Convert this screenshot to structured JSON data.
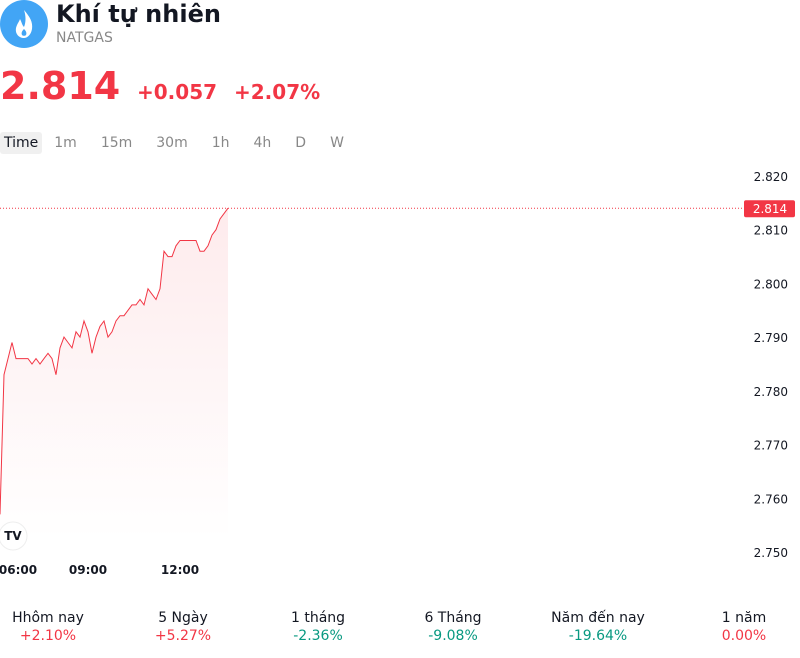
{
  "header": {
    "title": "Khí tự nhiên",
    "symbol": "NATGAS"
  },
  "quote": {
    "price": "2.814",
    "change": "+0.057",
    "change_percent": "+2.07%",
    "color": "#f23645"
  },
  "timeframes": {
    "items": [
      "Time",
      "1m",
      "15m",
      "30m",
      "1h",
      "4h",
      "D",
      "W"
    ],
    "active": 0
  },
  "chart_data": {
    "type": "line",
    "series": [
      {
        "color": "#f23645",
        "values": [
          2.757,
          2.783,
          2.786,
          2.789,
          2.786,
          2.786,
          2.786,
          2.786,
          2.785,
          2.786,
          2.785,
          2.786,
          2.787,
          2.786,
          2.783,
          2.788,
          2.79,
          2.789,
          2.788,
          2.791,
          2.79,
          2.793,
          2.791,
          2.787,
          2.79,
          2.792,
          2.793,
          2.79,
          2.791,
          2.793,
          2.794,
          2.794,
          2.795,
          2.796,
          2.796,
          2.797,
          2.796,
          2.799,
          2.798,
          2.797,
          2.799,
          2.806,
          2.805,
          2.805,
          2.807,
          2.808,
          2.808,
          2.808,
          2.808,
          2.808,
          2.806,
          2.806,
          2.807,
          2.809,
          2.81,
          2.812,
          2.813,
          2.814
        ]
      }
    ],
    "xlim": [
      0,
      185
    ],
    "xticks": [
      {
        "value": 4.5,
        "label": "06:00"
      },
      {
        "value": 22,
        "label": "09:00"
      },
      {
        "value": 45,
        "label": "12:00"
      }
    ],
    "ylim": [
      2.75,
      2.82
    ],
    "yticks": [
      {
        "value": 2.75,
        "label": "2.750"
      },
      {
        "value": 2.76,
        "label": "2.760"
      },
      {
        "value": 2.77,
        "label": "2.770"
      },
      {
        "value": 2.78,
        "label": "2.780"
      },
      {
        "value": 2.79,
        "label": "2.790"
      },
      {
        "value": 2.8,
        "label": "2.800"
      },
      {
        "value": 2.81,
        "label": "2.810"
      },
      {
        "value": 2.82,
        "label": "2.820"
      }
    ],
    "last_price": 2.814
  },
  "periods": [
    {
      "label": "Hhôm nay",
      "change": "+2.10%",
      "color": "#f23645"
    },
    {
      "label": "5 Ngày",
      "change": "+5.27%",
      "color": "#f23645"
    },
    {
      "label": "1 tháng",
      "change": "-2.36%",
      "color": "#089981"
    },
    {
      "label": "6 Tháng",
      "change": "-9.08%",
      "color": "#089981"
    },
    {
      "label": "Năm đến nay",
      "change": "-19.64%",
      "color": "#089981"
    },
    {
      "label": "1 năm",
      "change": "0.00%",
      "color": "#f23645"
    }
  ]
}
